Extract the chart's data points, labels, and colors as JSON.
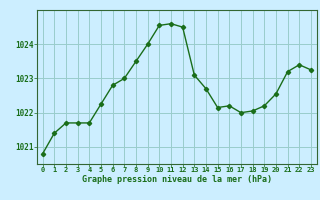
{
  "x": [
    0,
    1,
    2,
    3,
    4,
    5,
    6,
    7,
    8,
    9,
    10,
    11,
    12,
    13,
    14,
    15,
    16,
    17,
    18,
    19,
    20,
    21,
    22,
    23
  ],
  "y": [
    1020.8,
    1021.4,
    1021.7,
    1021.7,
    1021.7,
    1022.25,
    1022.8,
    1023.0,
    1023.5,
    1024.0,
    1024.55,
    1024.6,
    1024.5,
    1023.1,
    1022.7,
    1022.15,
    1022.2,
    1022.0,
    1022.05,
    1022.2,
    1022.55,
    1023.2,
    1023.4,
    1023.25
  ],
  "line_color": "#1a6e1a",
  "marker": "D",
  "marker_size": 2.2,
  "bg_color": "#cceeff",
  "grid_color": "#99cccc",
  "xlabel": "Graphe pression niveau de la mer (hPa)",
  "xlabel_color": "#1a6e1a",
  "tick_label_color": "#1a6e1a",
  "ylim": [
    1020.5,
    1025.0
  ],
  "yticks": [
    1021,
    1022,
    1023,
    1024
  ],
  "xlim": [
    -0.5,
    23.5
  ],
  "xticks": [
    0,
    1,
    2,
    3,
    4,
    5,
    6,
    7,
    8,
    9,
    10,
    11,
    12,
    13,
    14,
    15,
    16,
    17,
    18,
    19,
    20,
    21,
    22,
    23
  ]
}
